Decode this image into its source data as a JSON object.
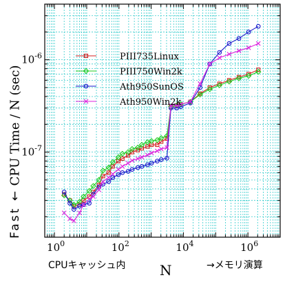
{
  "chart_data": {
    "type": "line",
    "title": "",
    "xlabel": "N",
    "ylabel": "CPU Time / N (sec)",
    "x_scale": "log",
    "y_scale": "log",
    "xlim": [
      0.5,
      10000000.0
    ],
    "ylim": [
      1.2e-08,
      4e-06
    ],
    "grid": true,
    "legend_position": "upper-left",
    "x_ticks": [
      {
        "value": 1,
        "label": "10^0"
      },
      {
        "value": 100,
        "label": "10^2"
      },
      {
        "value": 10000,
        "label": "10^4"
      },
      {
        "value": 1000000,
        "label": "10^6"
      }
    ],
    "y_ticks": [
      {
        "value": 1e-07,
        "label": "10^-7"
      },
      {
        "value": 1e-06,
        "label": "10^-6"
      }
    ],
    "x": [
      2,
      3,
      4,
      6,
      8,
      12,
      16,
      24,
      32,
      48,
      64,
      96,
      128,
      192,
      256,
      384,
      512,
      768,
      1024,
      1536,
      2048,
      3072,
      4096,
      6144,
      8192,
      16384,
      32768,
      65536,
      131072,
      262144,
      524288,
      1048576,
      2097152
    ],
    "series": [
      {
        "name": "PIII735Linux",
        "color": "#d62020",
        "marker": "square",
        "values": [
          3.5e-08,
          3e-08,
          2.6e-08,
          2.7e-08,
          3e-08,
          3.3e-08,
          3.7e-08,
          4.4e-08,
          5.5e-08,
          6e-08,
          7e-08,
          8e-08,
          8.5e-08,
          9.2e-08,
          1e-07,
          1.05e-07,
          1.1e-07,
          1.15e-07,
          1.2e-07,
          1.2e-07,
          1.3e-07,
          1.4e-07,
          3.1e-07,
          3.2e-07,
          3.3e-07,
          3.5e-07,
          4.3e-07,
          5e-07,
          5.5e-07,
          6e-07,
          6.5e-07,
          7e-07,
          7.8e-07
        ]
      },
      {
        "name": "PIII750Win2k",
        "color": "#22cc22",
        "marker": "diamond",
        "values": [
          3.4e-08,
          3e-08,
          2.7e-08,
          2.9e-08,
          3.3e-08,
          3.8e-08,
          4.3e-08,
          5e-08,
          6.3e-08,
          6.8e-08,
          7.8e-08,
          8.8e-08,
          9.6e-08,
          1e-07,
          1.08e-07,
          1.12e-07,
          1.2e-07,
          1.28e-07,
          1.32e-07,
          1.35e-07,
          1.42e-07,
          1.5e-07,
          3.1e-07,
          3.2e-07,
          3.3e-07,
          3.5e-07,
          4.2e-07,
          4.8e-07,
          5.3e-07,
          5.8e-07,
          6.3e-07,
          6.7e-07,
          7.4e-07
        ]
      },
      {
        "name": "Ath950SunOS",
        "color": "#1a1acc",
        "marker": "circle",
        "values": [
          3.7e-08,
          2.8e-08,
          2.4e-08,
          2.6e-08,
          2.7e-08,
          2.8e-08,
          3.5e-08,
          4.2e-08,
          4.5e-08,
          4.8e-08,
          5.3e-08,
          5.7e-08,
          6e-08,
          6.2e-08,
          6.5e-08,
          6.8e-08,
          7e-08,
          7.3e-08,
          7.6e-08,
          8e-08,
          8.3e-08,
          8.6e-08,
          3e-07,
          3e-07,
          3.1e-07,
          3.4e-07,
          5e-07,
          9e-07,
          1.2e-06,
          1.5e-06,
          1.7e-06,
          2e-06,
          2.3e-06
        ]
      },
      {
        "name": "Ath950Win2k",
        "color": "#dd22dd",
        "marker": "cross",
        "values": [
          2.2e-08,
          1.9e-08,
          1.8e-08,
          2.2e-08,
          2.7e-08,
          3.1e-08,
          3.3e-08,
          3.9e-08,
          4.8e-08,
          5.3e-08,
          5.8e-08,
          6.5e-08,
          7e-08,
          7.6e-08,
          8.1e-08,
          8.5e-08,
          8.8e-08,
          9.3e-08,
          9.8e-08,
          1.03e-07,
          1.08e-07,
          1.12e-07,
          3.2e-07,
          3.2e-07,
          3.3e-07,
          3.5e-07,
          5.5e-07,
          9e-07,
          1.05e-06,
          1.15e-06,
          1.25e-06,
          1.35e-06,
          1.5e-06
        ]
      }
    ]
  },
  "annotations": {
    "y_axis_label": "CPU Time / N (sec)",
    "fast_arrow": "Fast ←",
    "x_axis_label": "N",
    "cache_note": "CPUキャッシュ内",
    "memory_note": "→メモリ演算"
  }
}
